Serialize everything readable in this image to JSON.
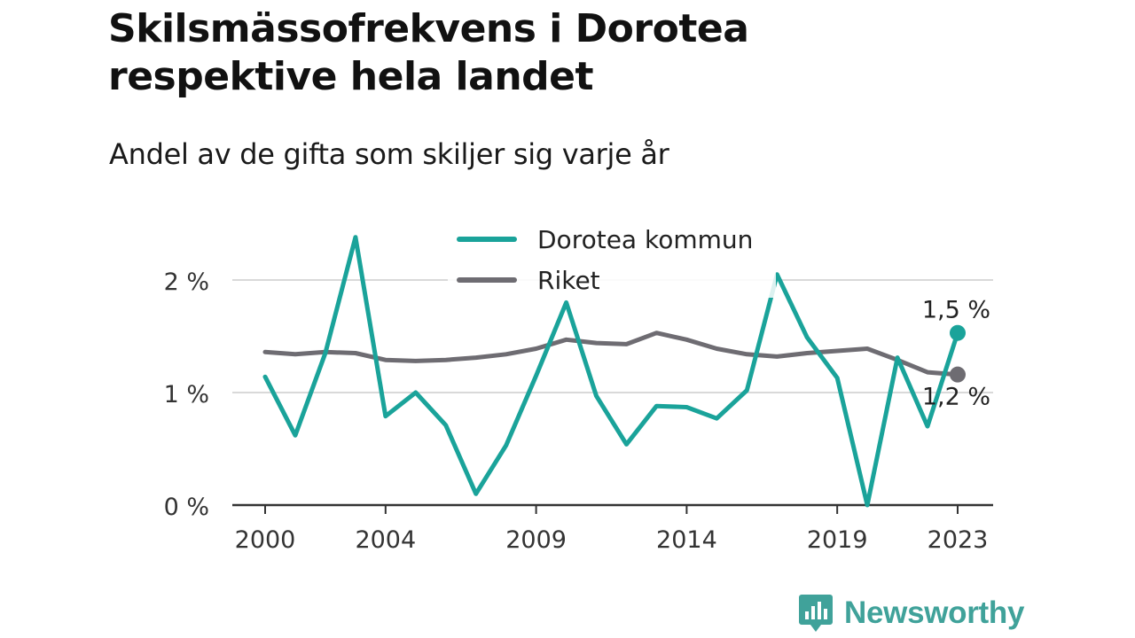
{
  "title": "Skilsmässofrekvens i Dorotea respektive hela landet",
  "subtitle": "Andel av de gifta som skiljer sig varje år",
  "brand": "Newsworthy",
  "colors": {
    "dorotea": "#1aa39a",
    "riket": "#6e6c72",
    "grid": "#d9d9d9",
    "axis": "#333333",
    "brand": "#40a29a"
  },
  "chart_data": {
    "type": "line",
    "title": "Skilsmässofrekvens i Dorotea respektive hela landet",
    "subtitle": "Andel av de gifta som skiljer sig varje år",
    "x": [
      2000,
      2001,
      2002,
      2003,
      2004,
      2005,
      2006,
      2007,
      2008,
      2009,
      2010,
      2011,
      2012,
      2013,
      2014,
      2015,
      2016,
      2017,
      2018,
      2019,
      2020,
      2021,
      2022,
      2023
    ],
    "xticks": [
      2000,
      2004,
      2009,
      2014,
      2019,
      2023
    ],
    "yticks": [
      {
        "value": 0,
        "label": "0 %"
      },
      {
        "value": 1,
        "label": "1 %"
      },
      {
        "value": 2,
        "label": "2 %"
      }
    ],
    "ylim": [
      0,
      2.4
    ],
    "xlim": [
      2000,
      2023
    ],
    "grid": true,
    "legend_position": "top",
    "series": [
      {
        "name": "Dorotea kommun",
        "values": [
          1.14,
          0.62,
          1.35,
          2.38,
          0.79,
          1.0,
          0.71,
          0.1,
          0.53,
          1.15,
          1.8,
          0.97,
          0.54,
          0.88,
          0.87,
          0.77,
          1.02,
          2.05,
          1.49,
          1.13,
          0.0,
          1.31,
          0.7,
          1.53
        ],
        "end_label": "1,5 %"
      },
      {
        "name": "Riket",
        "values": [
          1.36,
          1.34,
          1.36,
          1.35,
          1.29,
          1.28,
          1.29,
          1.31,
          1.34,
          1.39,
          1.47,
          1.44,
          1.43,
          1.53,
          1.47,
          1.39,
          1.34,
          1.32,
          1.35,
          1.37,
          1.39,
          1.29,
          1.18,
          1.16
        ],
        "end_label": "1,2 %"
      }
    ]
  }
}
